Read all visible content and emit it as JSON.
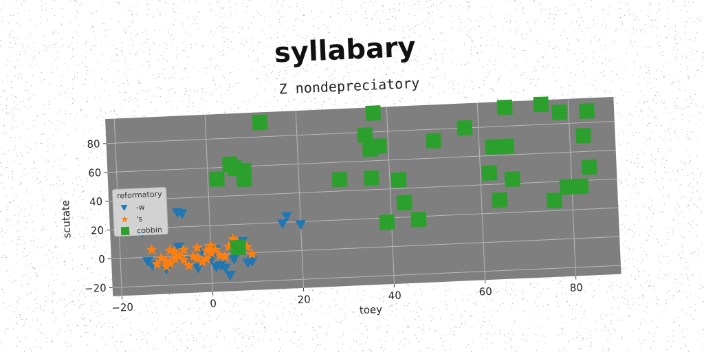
{
  "chart_data": {
    "type": "scatter",
    "title": "syllabary",
    "subtitle": "Z nondepreciatory",
    "xlabel": "toey",
    "ylabel": "scutate",
    "xlim": [
      -22,
      90
    ],
    "ylim": [
      -26,
      97
    ],
    "xticks": [
      -20,
      0,
      20,
      40,
      60,
      80
    ],
    "yticks": [
      -20,
      0,
      20,
      40,
      60,
      80
    ],
    "grid": true,
    "plot_background": "#7f7f7f",
    "legend": {
      "title": "reformatory",
      "placement": "center-left"
    },
    "series": [
      {
        "name": "-w",
        "marker": "triangle-down",
        "color": "#1f77b4",
        "points": [
          [
            -15,
            17
          ],
          [
            -14,
            -3
          ],
          [
            -13,
            -6
          ],
          [
            -10,
            -9
          ],
          [
            -7,
            30
          ],
          [
            -6,
            29
          ],
          [
            -7,
            6
          ],
          [
            -5,
            -4
          ],
          [
            -2,
            2
          ],
          [
            -3,
            -9
          ],
          [
            0,
            -3
          ],
          [
            1,
            3
          ],
          [
            1,
            -9
          ],
          [
            2,
            -8
          ],
          [
            3,
            -10
          ],
          [
            4,
            -15
          ],
          [
            5,
            -4
          ],
          [
            8,
            -7
          ],
          [
            9,
            -6
          ],
          [
            16,
            19
          ],
          [
            17,
            24
          ],
          [
            20,
            18
          ],
          [
            6,
            6
          ],
          [
            7,
            8
          ]
        ]
      },
      {
        "name": "'s",
        "marker": "star",
        "color": "#ff7f0e",
        "points": [
          [
            -13,
            5
          ],
          [
            -12,
            -5
          ],
          [
            -11,
            -1
          ],
          [
            -10,
            -3
          ],
          [
            -10,
            -7
          ],
          [
            -9,
            4
          ],
          [
            -9,
            -5
          ],
          [
            -8,
            3
          ],
          [
            -8,
            -2
          ],
          [
            -7,
            0
          ],
          [
            -6,
            4
          ],
          [
            -6,
            -3
          ],
          [
            -5,
            -7
          ],
          [
            -4,
            -1
          ],
          [
            -3,
            5
          ],
          [
            -3,
            -2
          ],
          [
            -2,
            -5
          ],
          [
            -1,
            3
          ],
          [
            -1,
            -3
          ],
          [
            0,
            6
          ],
          [
            0,
            1
          ],
          [
            1,
            3
          ],
          [
            2,
            -1
          ],
          [
            3,
            -2
          ],
          [
            4,
            5
          ],
          [
            5,
            10
          ],
          [
            6,
            7
          ],
          [
            7,
            2
          ],
          [
            8,
            4
          ],
          [
            9,
            -1
          ]
        ]
      },
      {
        "name": "cobbin",
        "marker": "square",
        "color": "#2ca02c",
        "points": [
          [
            12,
            90
          ],
          [
            37,
            93
          ],
          [
            66,
            93
          ],
          [
            74,
            94
          ],
          [
            78,
            88
          ],
          [
            84,
            88
          ],
          [
            57,
            80
          ],
          [
            35,
            78
          ],
          [
            36,
            68
          ],
          [
            38,
            70
          ],
          [
            50,
            72
          ],
          [
            63,
            66
          ],
          [
            66,
            66
          ],
          [
            83,
            71
          ],
          [
            5,
            62
          ],
          [
            6,
            59
          ],
          [
            8,
            57
          ],
          [
            2,
            52
          ],
          [
            8,
            51
          ],
          [
            29,
            48
          ],
          [
            36,
            48
          ],
          [
            42,
            46
          ],
          [
            62,
            48
          ],
          [
            67,
            43
          ],
          [
            84,
            49
          ],
          [
            79,
            36
          ],
          [
            82,
            36
          ],
          [
            43,
            30
          ],
          [
            64,
            29
          ],
          [
            76,
            27
          ],
          [
            39,
            17
          ],
          [
            46,
            18
          ],
          [
            6,
            4
          ]
        ]
      }
    ]
  }
}
